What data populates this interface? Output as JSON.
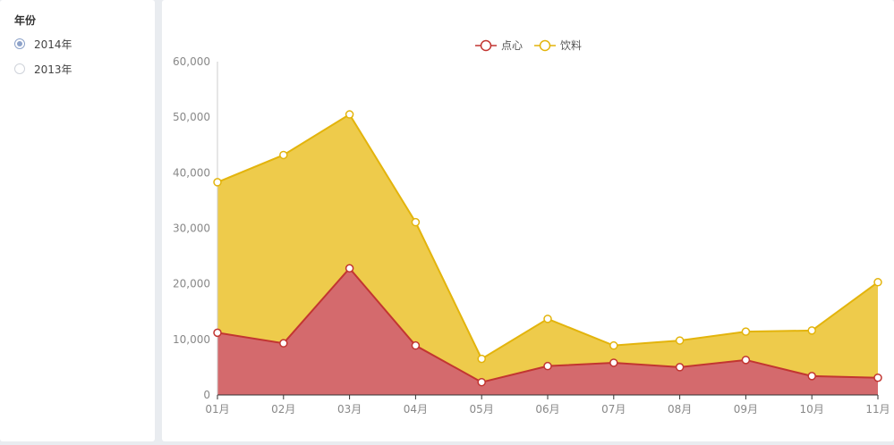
{
  "filter": {
    "title": "年份",
    "options": [
      {
        "label": "2014年",
        "checked": true
      },
      {
        "label": "2013年",
        "checked": false
      }
    ]
  },
  "colors": {
    "series_1_line": "#c23531",
    "series_1_fill": "#d46a6d",
    "series_2_line": "#e3b40c",
    "series_2_fill": "#eecb4b",
    "axis": "#cccccc",
    "tick_text": "#888888"
  },
  "chart_data": {
    "type": "area",
    "stacked": true,
    "legend_position": "top-center",
    "grid": false,
    "categories": [
      "01月",
      "02月",
      "03月",
      "04月",
      "05月",
      "06月",
      "07月",
      "08月",
      "09月",
      "10月",
      "11月"
    ],
    "ylim": [
      0,
      60000
    ],
    "yticks": [
      "0",
      "10,000",
      "20,000",
      "30,000",
      "40,000",
      "50,000",
      "60,000"
    ],
    "series": [
      {
        "name": "点心",
        "values": [
          11200,
          9300,
          22800,
          8900,
          2300,
          5200,
          5800,
          5000,
          6300,
          3400,
          3100
        ]
      },
      {
        "name": "饮料",
        "values": [
          27100,
          33900,
          27700,
          22200,
          4200,
          8500,
          3100,
          4800,
          5100,
          8200,
          17200
        ]
      }
    ]
  }
}
